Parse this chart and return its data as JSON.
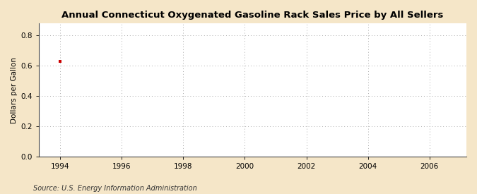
{
  "title": "Annual Connecticut Oxygenated Gasoline Rack Sales Price by All Sellers",
  "ylabel": "Dollars per Gallon",
  "source_text": "Source: U.S. Energy Information Administration",
  "x_data": [
    1994
  ],
  "y_data": [
    0.628
  ],
  "marker_color": "#cc0000",
  "marker_size": 3.5,
  "xlim": [
    1993.3,
    2007.2
  ],
  "ylim": [
    0.0,
    0.88
  ],
  "yticks": [
    0.0,
    0.2,
    0.4,
    0.6,
    0.8
  ],
  "xticks": [
    1994,
    1996,
    1998,
    2000,
    2002,
    2004,
    2006
  ],
  "background_color": "#f5e6c8",
  "plot_bg_color": "#ffffff",
  "grid_color": "#aaaaaa",
  "title_fontsize": 9.5,
  "label_fontsize": 7.5,
  "tick_fontsize": 7.5,
  "source_fontsize": 7.0
}
